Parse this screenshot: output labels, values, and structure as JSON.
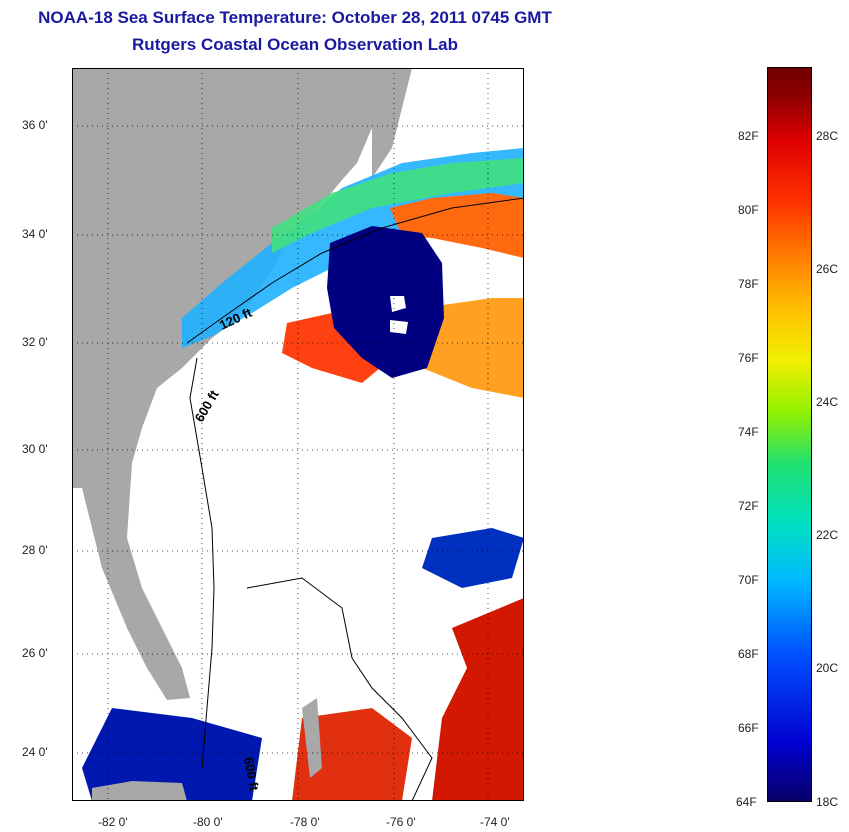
{
  "header": {
    "title": "NOAA-18 Sea Surface Temperature:  October 28, 2011 0745 GMT",
    "subtitle": "Rutgers Coastal Ocean Observation Lab"
  },
  "map": {
    "lat_ticks": [
      "36 0'",
      "34 0'",
      "32 0'",
      "30 0'",
      "28 0'",
      "26 0'",
      "24 0'"
    ],
    "lon_ticks": [
      "-82 0'",
      "-80 0'",
      "-78 0'",
      "-76 0'",
      "-74 0'"
    ],
    "contour_labels": [
      "120 ft",
      "600 ft",
      "600 ft"
    ],
    "colors": {
      "land": "#a8a8a8",
      "warm": "#e01000",
      "cold": "#000080",
      "mid": "#20b0ff"
    }
  },
  "colorbar": {
    "fahrenheit_ticks": [
      "82F",
      "80F",
      "78F",
      "76F",
      "74F",
      "72F",
      "70F",
      "68F",
      "66F",
      "64F"
    ],
    "celsius_ticks": [
      "28C",
      "26C",
      "24C",
      "22C",
      "20C",
      "18C"
    ],
    "range_f": [
      64,
      84
    ],
    "range_c": [
      18,
      29
    ]
  }
}
